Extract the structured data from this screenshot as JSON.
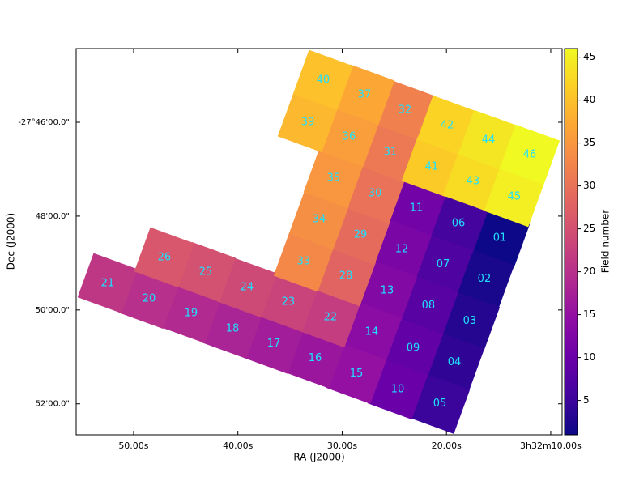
{
  "chart_data": {
    "type": "mosaic",
    "xlabel": "RA (J2000)",
    "ylabel": "Dec (J2000)",
    "colorbar_label": "Field number",
    "colormap": "plasma",
    "value_labels": [
      "01",
      "02",
      "03",
      "04",
      "05",
      "06",
      "07",
      "08",
      "09",
      "10",
      "11",
      "12",
      "13",
      "14",
      "15",
      "16",
      "17",
      "18",
      "19",
      "20",
      "21",
      "22",
      "23",
      "24",
      "25",
      "26",
      "28",
      "29",
      "30",
      "31",
      "32",
      "33",
      "34",
      "35",
      "36",
      "37",
      "39",
      "40",
      "41",
      "42",
      "43",
      "44",
      "45",
      "46"
    ],
    "values": [
      1,
      2,
      3,
      4,
      5,
      6,
      7,
      8,
      9,
      10,
      11,
      12,
      13,
      14,
      15,
      16,
      17,
      18,
      19,
      20,
      21,
      22,
      23,
      24,
      25,
      26,
      28,
      29,
      30,
      31,
      32,
      33,
      34,
      35,
      36,
      37,
      39,
      40,
      41,
      42,
      43,
      44,
      45,
      46
    ],
    "x": [
      14.89,
      16.37,
      17.77,
      19.24,
      20.64,
      18.85,
      20.33,
      21.73,
      23.2,
      24.68,
      22.89,
      24.29,
      25.69,
      27.17,
      28.64,
      32.6,
      36.56,
      40.52,
      44.49,
      48.52,
      52.49,
      31.13,
      35.17,
      39.13,
      43.09,
      47.05,
      29.65,
      28.25,
      26.85,
      25.38,
      23.98,
      33.69,
      32.21,
      30.82,
      29.34,
      27.86,
      33.3,
      31.83,
      21.42,
      19.94,
      17.46,
      15.98,
      13.5,
      12.02
    ],
    "y": [
      -48.47,
      -49.34,
      -50.24,
      -51.12,
      -52.0,
      -48.16,
      -49.03,
      -49.91,
      -50.81,
      -51.69,
      -47.83,
      -48.71,
      -49.59,
      -50.47,
      -51.36,
      -51.03,
      -50.72,
      -50.4,
      -50.07,
      -49.76,
      -49.43,
      -50.16,
      -49.83,
      -49.52,
      -49.19,
      -48.88,
      -49.28,
      -48.4,
      -47.52,
      -46.64,
      -45.74,
      -48.97,
      -48.07,
      -47.19,
      -46.31,
      -45.41,
      -46.0,
      -45.1,
      -46.95,
      -46.07,
      -47.26,
      -46.38,
      -47.59,
      -46.69
    ],
    "xlim": [
      55.51,
      8.91
    ],
    "xticks": [
      {
        "value": 50,
        "label": "50.00s"
      },
      {
        "value": 40,
        "label": "40.00s"
      },
      {
        "value": 30,
        "label": "30.00s"
      },
      {
        "value": 20,
        "label": "20.00s"
      },
      {
        "value": 10,
        "label": "3h32m10.00s"
      }
    ],
    "ylim": [
      -52.66,
      -44.43
    ],
    "yticks": [
      {
        "value": -46,
        "label": "-27°46'00.0\""
      },
      {
        "value": -48,
        "label": "48'00.0\""
      },
      {
        "value": -50,
        "label": "50'00.0\""
      },
      {
        "value": -52,
        "label": "52'00.0\""
      }
    ],
    "clim": [
      1,
      46
    ],
    "cticks": [
      5,
      10,
      15,
      20,
      25,
      30,
      35,
      40,
      45
    ]
  }
}
